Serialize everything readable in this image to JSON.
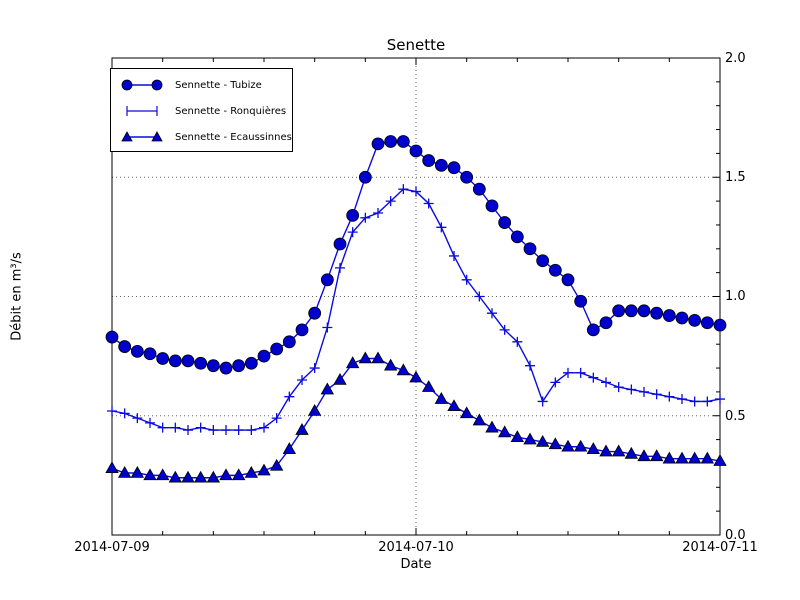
{
  "chart_data": {
    "type": "line",
    "title": "Senette",
    "xlabel": "Date",
    "ylabel": "Débit en m³/s",
    "x_ticklabels": [
      "2014-07-09",
      "2014-07-10",
      "2014-07-11"
    ],
    "x_major_tick_hours": [
      0,
      24,
      48
    ],
    "x_minor_tick_step_hours": 4,
    "x_unit": "hours since 2014-07-09 00:00",
    "ylim": [
      0.0,
      2.0
    ],
    "y_ticklabels": [
      "0.0",
      "0.5",
      "1.0",
      "1.5",
      "2.0"
    ],
    "y_major_step": 0.5,
    "y_minor_step": 0.1,
    "grid": {
      "style": "dotted",
      "y_lines": [
        0.5,
        1.0,
        1.5
      ],
      "x_lines_hours": [
        24
      ]
    },
    "legend_position": "upper left",
    "colors": {
      "line": "#0b0be0",
      "marker_fill": "#0000cc",
      "marker_edge": "#000000",
      "grid": "#666666",
      "frame": "#000000"
    },
    "series": [
      {
        "name": "Sennette - Tubize",
        "marker": "circle",
        "values": [
          0.83,
          0.79,
          0.77,
          0.76,
          0.74,
          0.73,
          0.73,
          0.72,
          0.71,
          0.7,
          0.71,
          0.72,
          0.75,
          0.78,
          0.81,
          0.86,
          0.93,
          1.07,
          1.22,
          1.34,
          1.5,
          1.64,
          1.65,
          1.65,
          1.61,
          1.57,
          1.55,
          1.54,
          1.5,
          1.45,
          1.38,
          1.31,
          1.25,
          1.2,
          1.15,
          1.11,
          1.07,
          0.98,
          0.86,
          0.89,
          0.94,
          0.94,
          0.94,
          0.93,
          0.92,
          0.91,
          0.9,
          0.89,
          0.88
        ]
      },
      {
        "name": "Sennette - Ronquières",
        "marker": "plus",
        "values": [
          0.52,
          0.51,
          0.49,
          0.47,
          0.45,
          0.45,
          0.44,
          0.45,
          0.44,
          0.44,
          0.44,
          0.44,
          0.45,
          0.49,
          0.58,
          0.65,
          0.7,
          0.87,
          1.12,
          1.27,
          1.33,
          1.35,
          1.4,
          1.45,
          1.44,
          1.39,
          1.29,
          1.17,
          1.07,
          1.0,
          0.93,
          0.86,
          0.81,
          0.71,
          0.56,
          0.64,
          0.68,
          0.68,
          0.66,
          0.64,
          0.62,
          0.61,
          0.6,
          0.59,
          0.58,
          0.57,
          0.56,
          0.56,
          0.57
        ]
      },
      {
        "name": "Sennette - Ecaussinnes",
        "marker": "triangle",
        "values": [
          0.28,
          0.26,
          0.26,
          0.25,
          0.25,
          0.24,
          0.24,
          0.24,
          0.24,
          0.25,
          0.25,
          0.26,
          0.27,
          0.29,
          0.36,
          0.44,
          0.52,
          0.61,
          0.65,
          0.72,
          0.74,
          0.74,
          0.71,
          0.69,
          0.66,
          0.62,
          0.57,
          0.54,
          0.51,
          0.48,
          0.45,
          0.43,
          0.41,
          0.4,
          0.39,
          0.38,
          0.37,
          0.37,
          0.36,
          0.35,
          0.35,
          0.34,
          0.33,
          0.33,
          0.32,
          0.32,
          0.32,
          0.32,
          0.31
        ]
      }
    ]
  }
}
